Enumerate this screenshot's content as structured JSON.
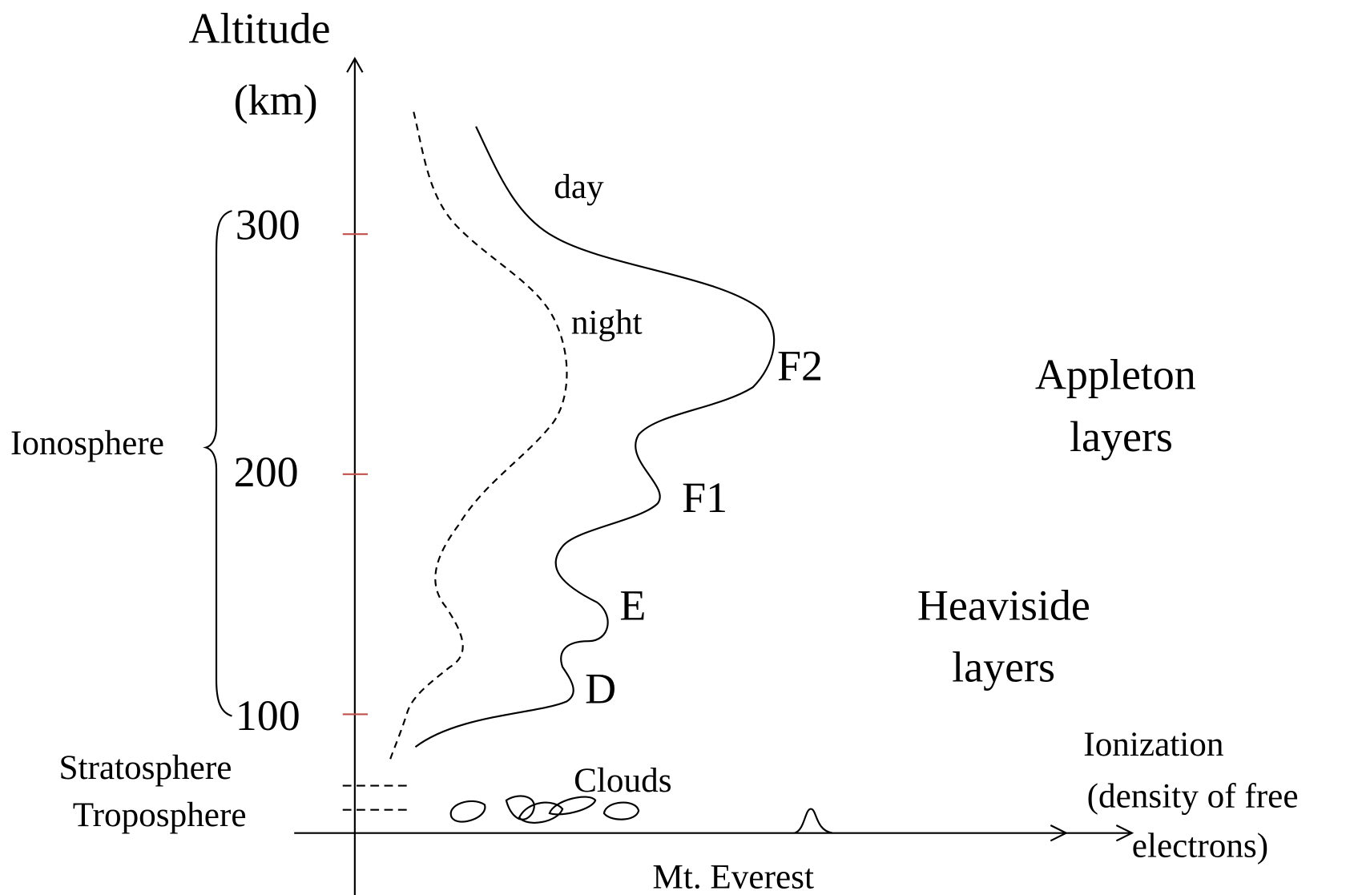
{
  "axes": {
    "y_label": [
      "Altitude",
      "(km)"
    ],
    "ticks": [
      "300",
      "200",
      "100"
    ],
    "x_label": [
      "Ionization",
      "(density of free",
      "electrons)"
    ]
  },
  "regions": {
    "ionosphere": "Ionosphere",
    "stratosphere": "Stratosphere",
    "troposphere": "Troposphere"
  },
  "curves": {
    "day": "day",
    "night": "night"
  },
  "layers": [
    "F2",
    "F1",
    "E",
    "D"
  ],
  "groups": {
    "appleton": [
      "Appleton",
      "layers"
    ],
    "heaviside": [
      "Heaviside",
      "layers"
    ]
  },
  "features": {
    "clouds": "Clouds",
    "everest": "Mt. Everest"
  }
}
